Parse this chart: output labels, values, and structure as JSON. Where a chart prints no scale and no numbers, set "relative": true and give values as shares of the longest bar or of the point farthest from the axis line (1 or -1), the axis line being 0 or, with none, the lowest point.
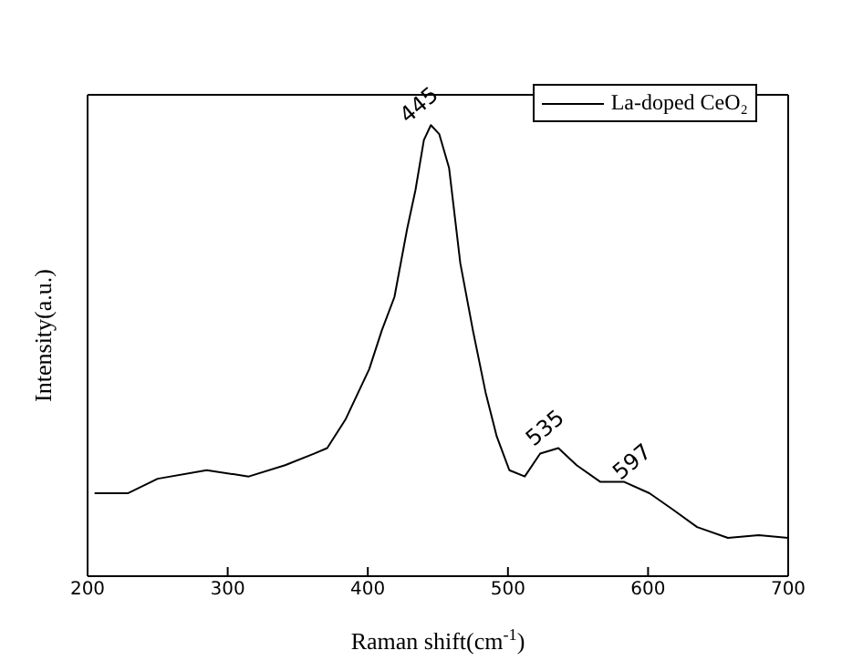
{
  "chart_data": {
    "type": "line",
    "relative": true,
    "xlabel": "Raman shift(cm$^{-1}$)",
    "ylabel": "Intensity(a.u.)",
    "xlim": [
      200,
      700
    ],
    "xticks": [
      200,
      300,
      400,
      500,
      600,
      700
    ],
    "legend": "top right",
    "marker": "none",
    "line_style": "solid",
    "x": [
      205,
      229,
      250,
      285,
      315,
      341,
      362,
      371,
      384,
      401,
      410,
      419,
      428,
      434,
      440,
      445,
      451,
      458,
      466,
      475,
      484,
      492,
      501,
      512,
      523,
      536,
      549,
      566,
      583,
      601,
      618,
      635,
      657,
      679,
      700
    ],
    "series": [
      {
        "name": "La-doped CeO₂",
        "color": "#000000",
        "values": [
          0.184,
          0.184,
          0.216,
          0.235,
          0.221,
          0.246,
          0.272,
          0.284,
          0.347,
          0.459,
          0.545,
          0.619,
          0.769,
          0.856,
          0.967,
          1.0,
          0.98,
          0.905,
          0.694,
          0.545,
          0.408,
          0.31,
          0.235,
          0.221,
          0.272,
          0.284,
          0.246,
          0.209,
          0.209,
          0.184,
          0.147,
          0.109,
          0.085,
          0.091,
          0.085
        ]
      }
    ],
    "annotations": [
      {
        "text": "445",
        "x": 445,
        "y": 1.0
      },
      {
        "text": "535",
        "x": 535,
        "y": 0.284
      },
      {
        "text": "597",
        "x": 597,
        "y": 0.209
      }
    ]
  }
}
